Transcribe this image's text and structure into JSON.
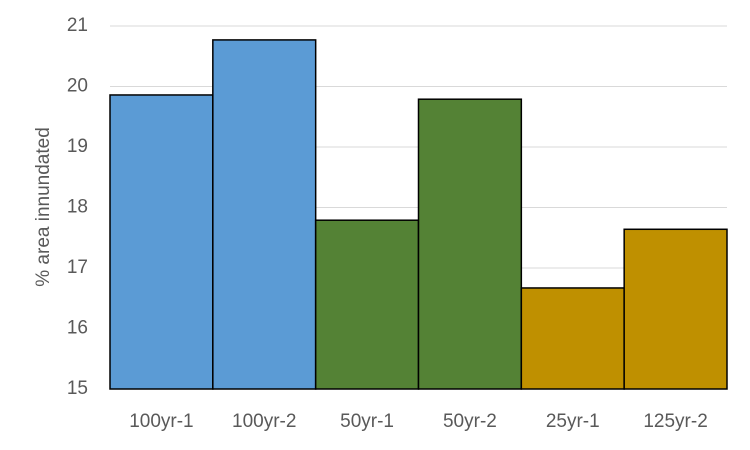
{
  "chart_data": {
    "type": "bar",
    "y_label": "% area innundated",
    "categories": [
      "100yr-1",
      "100yr-2",
      "50yr-1",
      "50yr-2",
      "25yr-1",
      "125yr-2"
    ],
    "values": [
      19.86,
      20.77,
      17.79,
      19.79,
      16.67,
      17.64
    ],
    "colors": [
      "#5b9bd5",
      "#5b9bd5",
      "#548235",
      "#548235",
      "#bf9000",
      "#bf9000"
    ],
    "ylim": [
      15,
      21
    ],
    "yticks": [
      15,
      16,
      17,
      18,
      19,
      20,
      21
    ],
    "grid": true
  }
}
